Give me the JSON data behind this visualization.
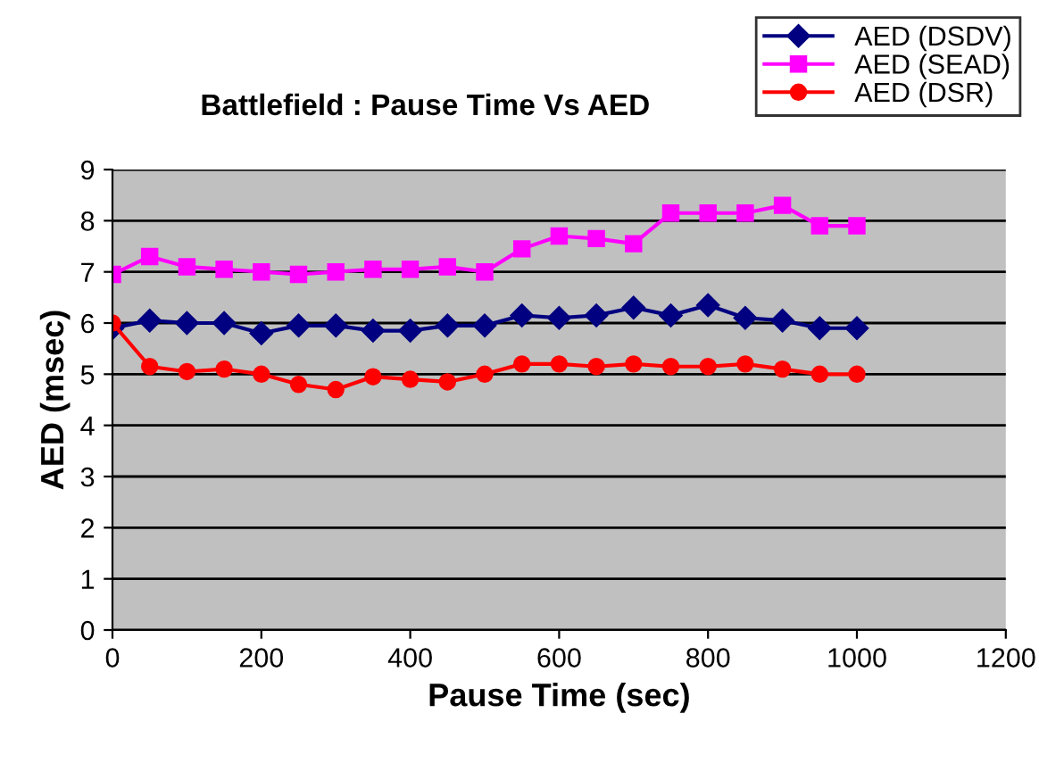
{
  "chart_data": {
    "type": "line",
    "title": "Battlefield : Pause Time Vs AED",
    "xlabel": "Pause Time (sec)",
    "ylabel": "AED (msec)",
    "x": [
      0,
      50,
      100,
      150,
      200,
      250,
      300,
      350,
      400,
      450,
      500,
      550,
      600,
      650,
      700,
      750,
      800,
      850,
      900,
      950,
      1000
    ],
    "series": [
      {
        "name": "AED (DSDV)",
        "color": "#000080",
        "marker": "diamond",
        "values": [
          5.9,
          6.05,
          6.0,
          6.0,
          5.8,
          5.95,
          5.95,
          5.85,
          5.85,
          5.95,
          5.95,
          6.15,
          6.1,
          6.15,
          6.3,
          6.15,
          6.35,
          6.1,
          6.05,
          5.9,
          5.9
        ]
      },
      {
        "name": "AED (SEAD)",
        "color": "#ff00ff",
        "marker": "square",
        "values": [
          6.95,
          7.3,
          7.1,
          7.05,
          7.0,
          6.95,
          7.0,
          7.05,
          7.05,
          7.1,
          7.0,
          7.45,
          7.7,
          7.65,
          7.55,
          8.15,
          8.15,
          8.15,
          8.3,
          7.9,
          7.9
        ]
      },
      {
        "name": "AED (DSR)",
        "color": "#ff0000",
        "marker": "circle",
        "values": [
          6.0,
          5.15,
          5.05,
          5.1,
          5.0,
          4.8,
          4.7,
          4.95,
          4.9,
          4.85,
          5.0,
          5.2,
          5.2,
          5.15,
          5.2,
          5.15,
          5.15,
          5.2,
          5.1,
          5.0,
          5.0
        ]
      }
    ],
    "xlim": [
      0,
      1200
    ],
    "xticks": [
      0,
      200,
      400,
      600,
      800,
      1000,
      1200
    ],
    "ylim": [
      0,
      9
    ],
    "yticks": [
      0,
      1,
      2,
      3,
      4,
      5,
      6,
      7,
      8,
      9
    ],
    "grid": "y",
    "legend": "top right"
  }
}
